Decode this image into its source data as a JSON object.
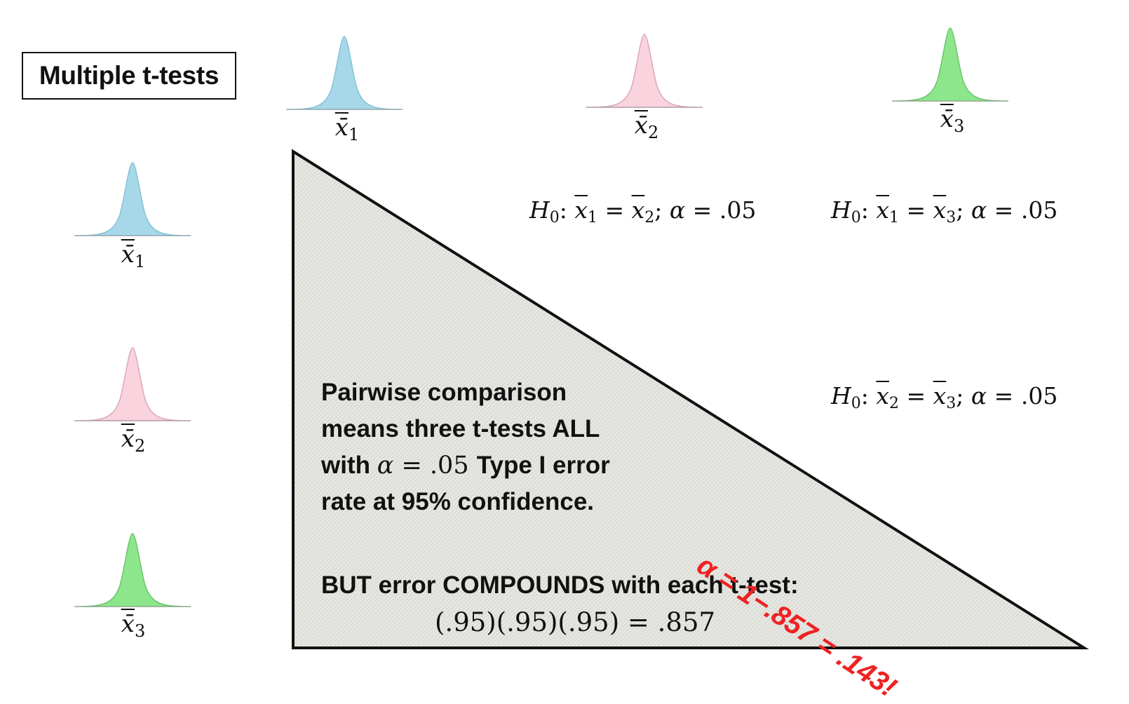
{
  "title": "Multiple t-tests",
  "colors": {
    "blue_fill": "#a6d8ea",
    "pink_fill": "#f9d3dd",
    "green_fill": "#8ee68c",
    "red_text": "#ee2222",
    "triangle_fill": "#e6e6e2"
  },
  "top_curves": [
    {
      "mean": "x̄",
      "sub": "1"
    },
    {
      "mean": "x̄",
      "sub": "2"
    },
    {
      "mean": "x̄",
      "sub": "3"
    }
  ],
  "left_curves": [
    {
      "mean": "x̄",
      "sub": "1"
    },
    {
      "mean": "x̄",
      "sub": "2"
    },
    {
      "mean": "x̄",
      "sub": "3"
    }
  ],
  "hypotheses": {
    "h12": {
      "H": "H",
      "zero": "0",
      "a": "1",
      "b": "2",
      "alpha": "α",
      "value": ".05"
    },
    "h13": {
      "H": "H",
      "zero": "0",
      "a": "1",
      "b": "3",
      "alpha": "α",
      "value": ".05"
    },
    "h23": {
      "H": "H",
      "zero": "0",
      "a": "2",
      "b": "3",
      "alpha": "α",
      "value": ".05"
    }
  },
  "explanation": {
    "line1": "Pairwise comparison",
    "line2a": "means ",
    "line2b": "three t-tests ALL",
    "line3a": "with ",
    "alpha": "α",
    "line3eq": " = .05 ",
    "line3b": "Type I error",
    "line4": "rate at 95% confidence."
  },
  "compound": {
    "but_line": "BUT error COMPOUNDS with each t-test:",
    "calc": "(.95)(.95)(.95) = .857"
  },
  "red_equation": "α = 1−.857 = .143!"
}
